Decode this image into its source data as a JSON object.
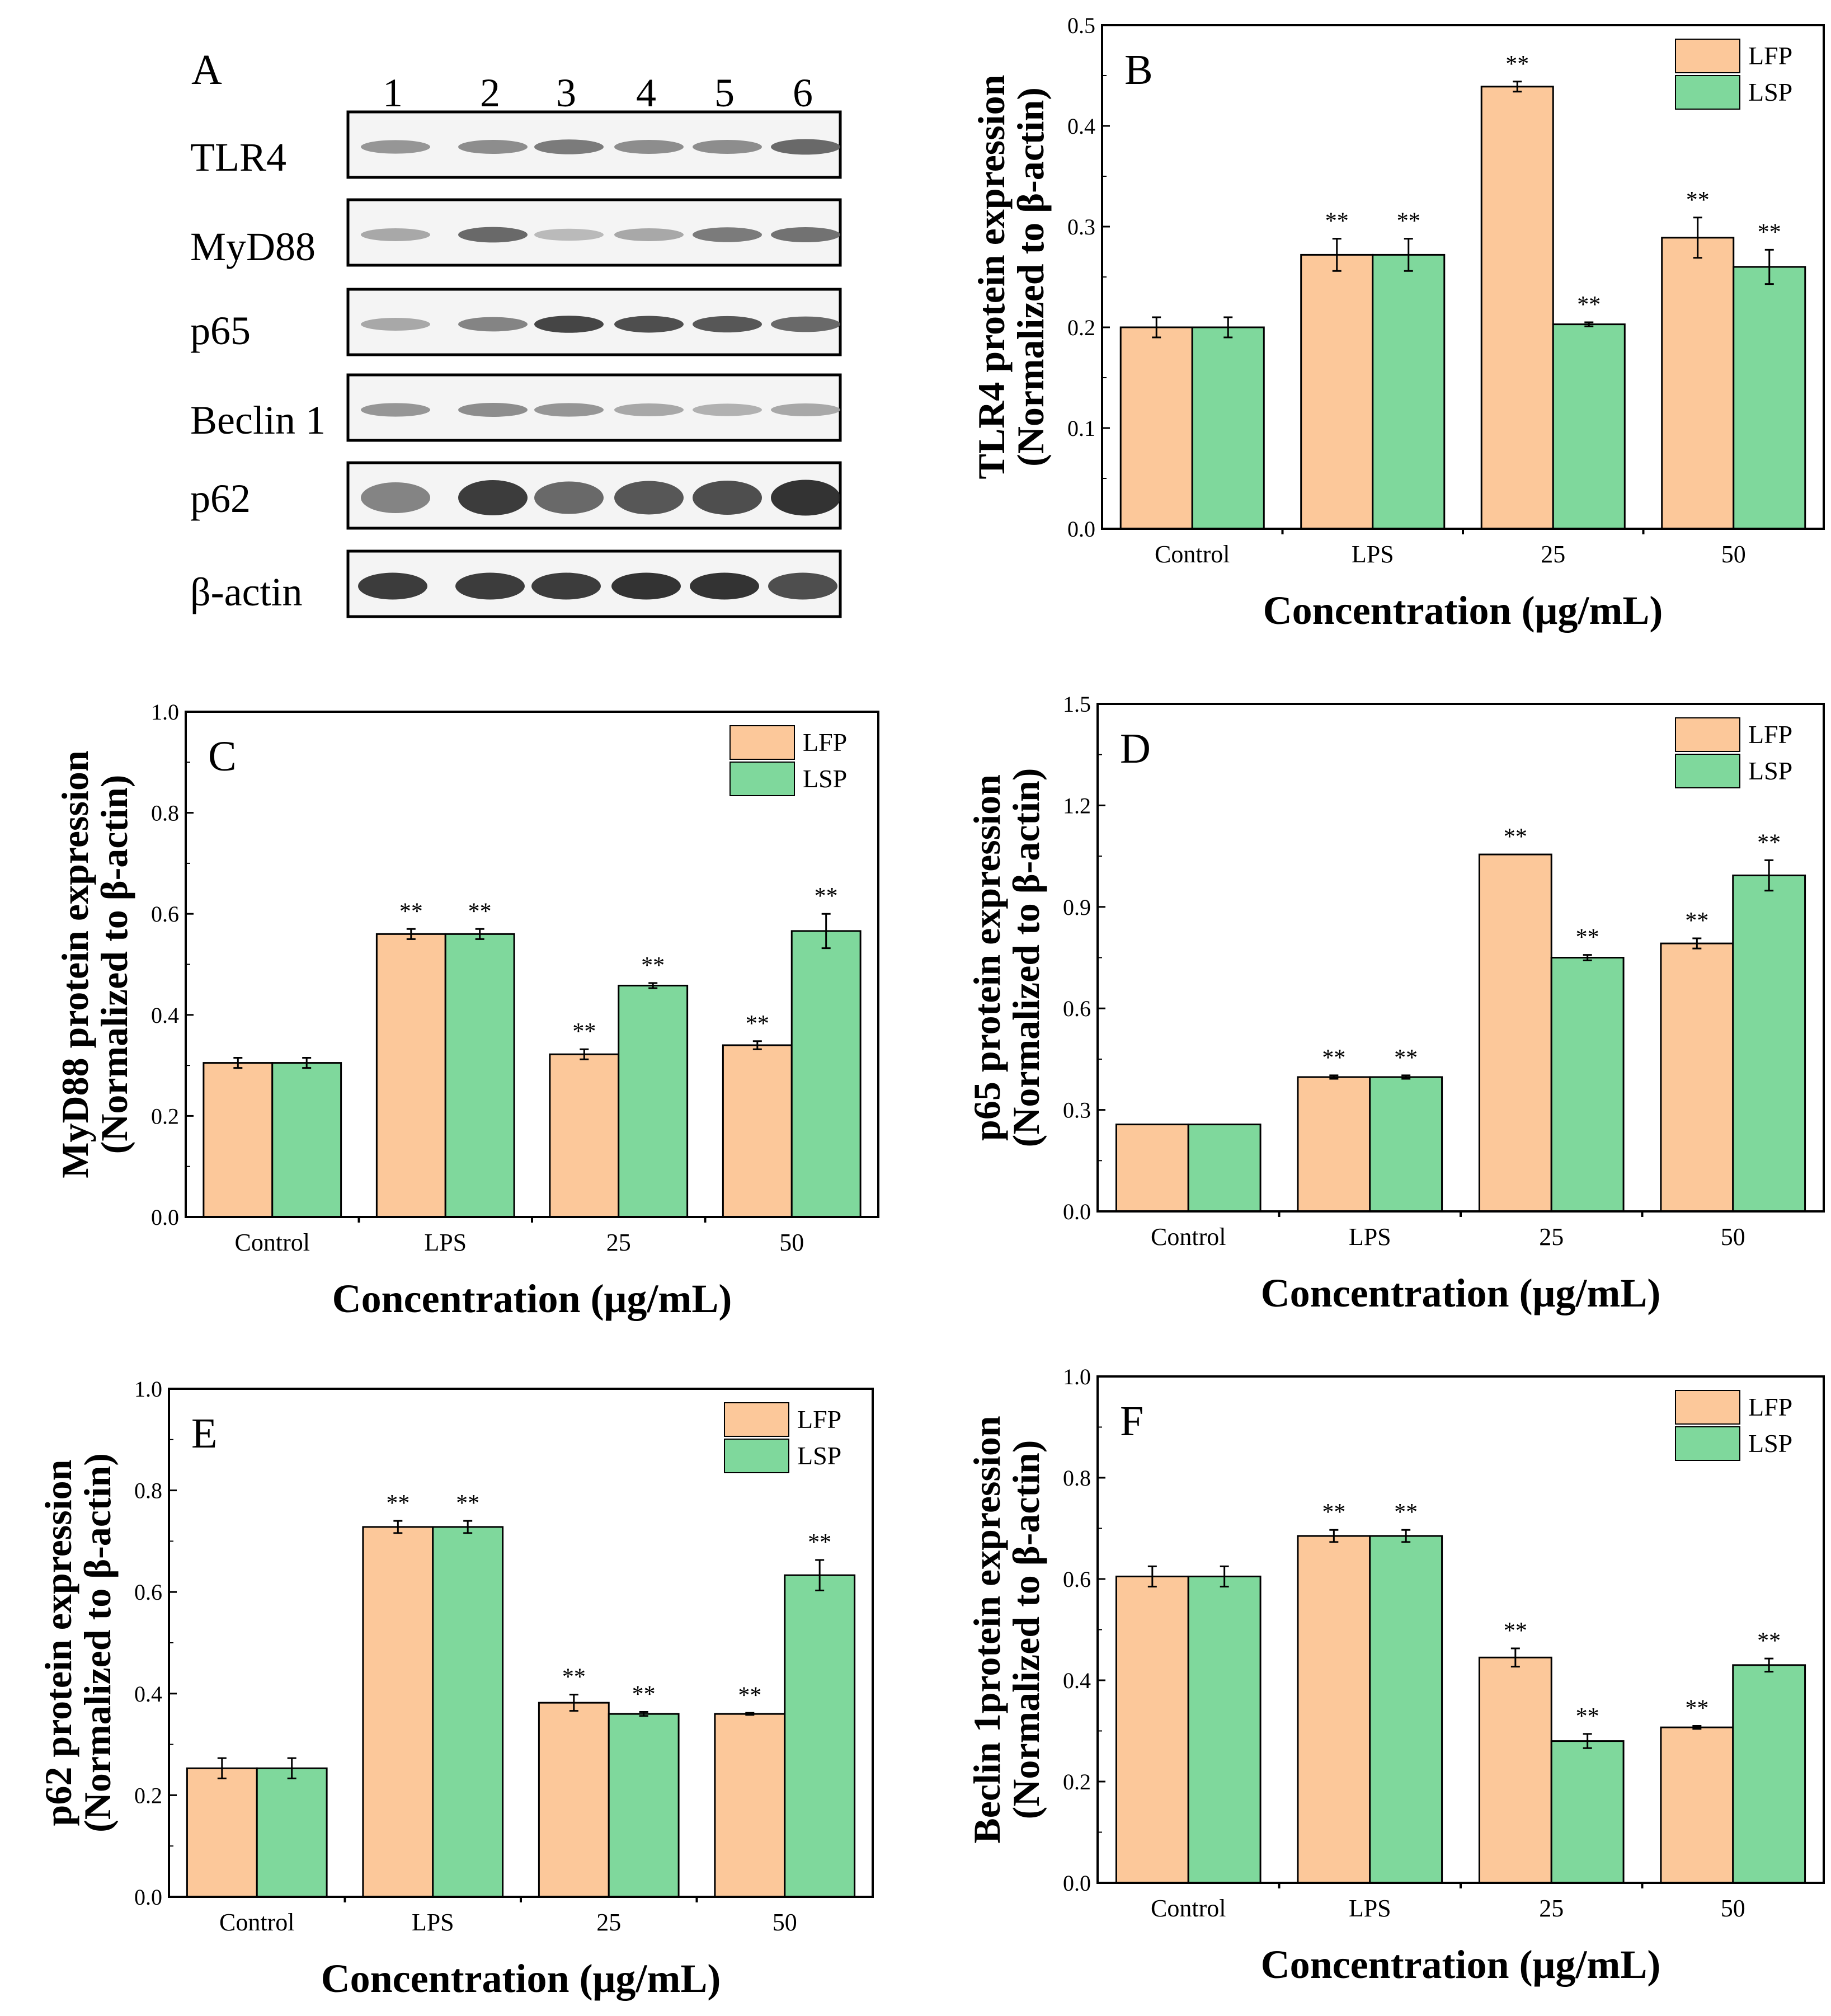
{
  "colors": {
    "lfp": "#fcc89a",
    "lsp": "#7fd89c",
    "axis": "#000000"
  },
  "blot": {
    "panel_letter": "A",
    "lanes": [
      "1",
      "2",
      "3",
      "4",
      "5",
      "6"
    ],
    "rows": [
      {
        "label": "TLR4",
        "intensity": [
          0.45,
          0.5,
          0.6,
          0.5,
          0.5,
          0.7
        ]
      },
      {
        "label": "MyD88",
        "intensity": [
          0.35,
          0.7,
          0.25,
          0.35,
          0.6,
          0.65
        ]
      },
      {
        "label": "p65",
        "intensity": [
          0.35,
          0.55,
          0.9,
          0.85,
          0.8,
          0.7
        ]
      },
      {
        "label": "Beclin 1",
        "intensity": [
          0.45,
          0.5,
          0.45,
          0.35,
          0.3,
          0.35
        ]
      },
      {
        "label": "p62",
        "intensity": [
          0.55,
          0.95,
          0.7,
          0.8,
          0.85,
          1.0
        ]
      },
      {
        "label": "β-actin",
        "intensity": [
          0.95,
          0.95,
          0.95,
          1.0,
          1.0,
          0.85
        ]
      }
    ]
  },
  "chart_data": [
    {
      "panel": "B",
      "type": "bar",
      "title": "",
      "xlabel": "Concentration (μg/mL)",
      "ylabel_line1": "TLR4 protein expression",
      "ylabel_line2": "(Normalized to β-actin)",
      "ylim": [
        0,
        0.5
      ],
      "yticks": [
        "0.0",
        "0.1",
        "0.2",
        "0.3",
        "0.4",
        "0.5"
      ],
      "categories": [
        "Control",
        "LPS",
        "25",
        "50"
      ],
      "legend_position": "top-right",
      "series": [
        {
          "name": "LFP",
          "values": [
            0.2,
            0.272,
            0.439,
            0.289
          ],
          "errors": [
            0.01,
            0.016,
            0.005,
            0.02
          ],
          "labels": [
            "",
            "**",
            "**",
            "**"
          ]
        },
        {
          "name": "LSP",
          "values": [
            0.2,
            0.272,
            0.203,
            0.26
          ],
          "errors": [
            0.01,
            0.016,
            0.002,
            0.017
          ],
          "labels": [
            "",
            "**",
            "**",
            "**"
          ]
        }
      ]
    },
    {
      "panel": "C",
      "type": "bar",
      "title": "",
      "xlabel": "Concentration (μg/mL)",
      "ylabel_line1": "MyD88 protein expression",
      "ylabel_line2": "(Normalized to β-actin)",
      "ylim": [
        0,
        1.0
      ],
      "yticks": [
        "0.0",
        "0.2",
        "0.4",
        "0.6",
        "0.8",
        "1.0"
      ],
      "categories": [
        "Control",
        "LPS",
        "25",
        "50"
      ],
      "legend_position": "top-right",
      "series": [
        {
          "name": "LFP",
          "values": [
            0.305,
            0.56,
            0.322,
            0.34
          ],
          "errors": [
            0.01,
            0.01,
            0.01,
            0.008
          ],
          "labels": [
            "",
            "**",
            "**",
            "**"
          ]
        },
        {
          "name": "LSP",
          "values": [
            0.305,
            0.56,
            0.458,
            0.566
          ],
          "errors": [
            0.01,
            0.01,
            0.005,
            0.034
          ],
          "labels": [
            "",
            "**",
            "**",
            "**"
          ]
        }
      ]
    },
    {
      "panel": "D",
      "type": "bar",
      "title": "",
      "xlabel": "Concentration (μg/mL)",
      "ylabel_line1": "p65 protein expression",
      "ylabel_line2": "(Normalized to β-actin)",
      "ylim": [
        0,
        1.5
      ],
      "yticks": [
        "0.0",
        "0.3",
        "0.6",
        "0.9",
        "1.2",
        "1.5"
      ],
      "categories": [
        "Control",
        "LPS",
        "25",
        "50"
      ],
      "legend_position": "top-right",
      "series": [
        {
          "name": "LFP",
          "values": [
            0.257,
            0.397,
            1.055,
            0.792
          ],
          "errors": [
            0,
            0.005,
            0,
            0.015
          ],
          "labels": [
            "",
            "**",
            "**",
            "**"
          ]
        },
        {
          "name": "LSP",
          "values": [
            0.257,
            0.397,
            0.75,
            0.993
          ],
          "errors": [
            0,
            0.005,
            0.008,
            0.045
          ],
          "labels": [
            "",
            "**",
            "**",
            "**"
          ]
        }
      ]
    },
    {
      "panel": "E",
      "type": "bar",
      "title": "",
      "xlabel": "Concentration (μg/mL)",
      "ylabel_line1": "p62 protein expression",
      "ylabel_line2": "(Normalized to β-actin)",
      "ylim": [
        0,
        1.0
      ],
      "yticks": [
        "0.0",
        "0.2",
        "0.4",
        "0.6",
        "0.8",
        "1.0"
      ],
      "categories": [
        "Control",
        "LPS",
        "25",
        "50"
      ],
      "legend_position": "top-right",
      "series": [
        {
          "name": "LFP",
          "values": [
            0.253,
            0.728,
            0.382,
            0.36
          ],
          "errors": [
            0.02,
            0.012,
            0.016,
            0.002
          ],
          "labels": [
            "",
            "**",
            "**",
            "**"
          ]
        },
        {
          "name": "LSP",
          "values": [
            0.253,
            0.728,
            0.36,
            0.633
          ],
          "errors": [
            0.02,
            0.012,
            0.004,
            0.03
          ],
          "labels": [
            "",
            "**",
            "**",
            "**"
          ]
        }
      ]
    },
    {
      "panel": "F",
      "type": "bar",
      "title": "",
      "xlabel": "Concentration (μg/mL)",
      "ylabel_line1": "Beclin 1protein expression",
      "ylabel_line2": "(Normalized to β-actin)",
      "ylim": [
        0,
        1.0
      ],
      "yticks": [
        "0.0",
        "0.2",
        "0.4",
        "0.6",
        "0.8",
        "1.0"
      ],
      "categories": [
        "Control",
        "LPS",
        "25",
        "50"
      ],
      "legend_position": "top-right",
      "series": [
        {
          "name": "LFP",
          "values": [
            0.605,
            0.685,
            0.445,
            0.307
          ],
          "errors": [
            0.02,
            0.012,
            0.018,
            0.003
          ],
          "labels": [
            "",
            "**",
            "**",
            "**"
          ]
        },
        {
          "name": "LSP",
          "values": [
            0.605,
            0.685,
            0.28,
            0.43
          ],
          "errors": [
            0.02,
            0.012,
            0.014,
            0.013
          ],
          "labels": [
            "",
            "**",
            "**",
            "**"
          ]
        }
      ]
    }
  ]
}
